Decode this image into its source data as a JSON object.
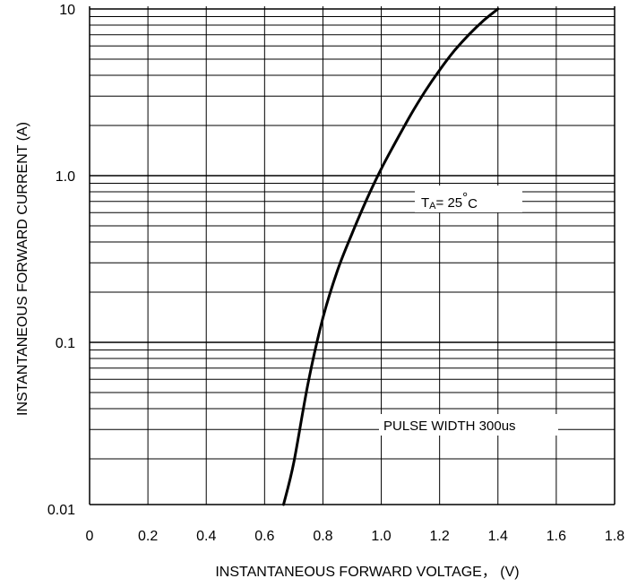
{
  "chart_data": {
    "type": "line",
    "title": "",
    "xlabel": "INSTANTANEOUS FORWARD VOLTAGE， (V)",
    "ylabel": "INSTANTANEOUS FORWARD CURRENT (A)",
    "xlim": [
      0,
      1.8
    ],
    "ylim": [
      0.008,
      10
    ],
    "yscale": "log",
    "grid": true,
    "x_ticks": [
      "0",
      "0.2",
      "0.4",
      "0.6",
      "0.8",
      "1.0",
      "1.2",
      "1.4",
      "1.6",
      "1.8"
    ],
    "y_ticks": [
      "0.01",
      "0.1",
      "1.0",
      "10"
    ],
    "series": [
      {
        "x": [
          0.665,
          0.7,
          0.75,
          0.8,
          0.85,
          0.9,
          0.95,
          1.0,
          1.05,
          1.1,
          1.15,
          1.2,
          1.25,
          1.3,
          1.35,
          1.4
        ],
        "y": [
          0.008,
          0.019,
          0.058,
          0.14,
          0.27,
          0.45,
          0.72,
          1.1,
          1.6,
          2.3,
          3.2,
          4.3,
          5.6,
          7.0,
          8.5,
          10.0
        ]
      }
    ],
    "annotations": {
      "ta_main": "T",
      "ta_sub": "A",
      "ta_value": "= 25",
      "ta_degree": "°",
      "ta_unit": "C",
      "pulse": "PULSE WIDTH 300us"
    },
    "colors": {
      "line": "#000000",
      "grid": "#000000",
      "background": "#ffffff"
    }
  }
}
